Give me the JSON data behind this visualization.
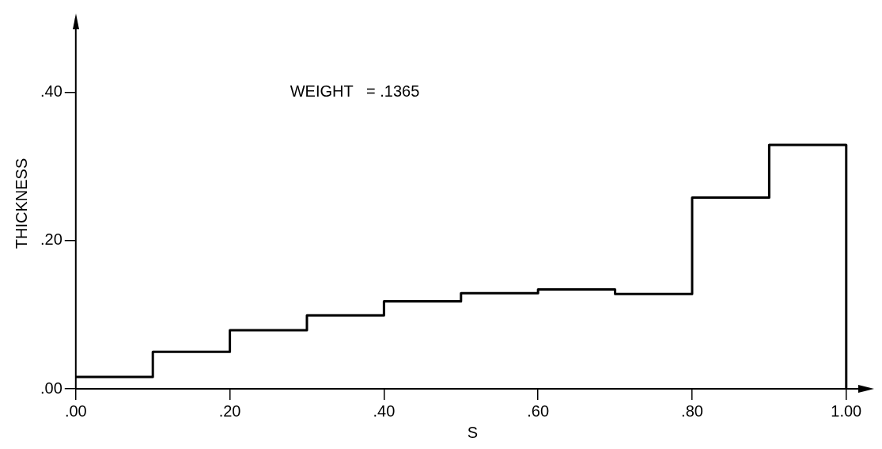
{
  "chart_data": {
    "type": "histogram",
    "xlabel": "S",
    "ylabel": "THICKNESS",
    "annotations": [
      "WEIGHT   = .1365"
    ],
    "bins": [
      0,
      0.1,
      0.2,
      0.3,
      0.4,
      0.5,
      0.6,
      0.7,
      0.8,
      0.9,
      1.0
    ],
    "values": [
      0.016,
      0.05,
      0.079,
      0.099,
      0.118,
      0.129,
      0.134,
      0.128,
      0.258,
      0.329
    ],
    "color": "#000000",
    "xlim": [
      0,
      1.03
    ],
    "xticks": [
      {
        "value": 0,
        "label": ".00"
      },
      {
        "value": 0.2,
        "label": ".20"
      },
      {
        "value": 0.4,
        "label": ".40"
      },
      {
        "value": 0.6,
        "label": ".60"
      },
      {
        "value": 0.8,
        "label": ".80"
      },
      {
        "value": 1.0,
        "label": "1.00"
      }
    ],
    "ylim": [
      0,
      0.5
    ],
    "yticks": [
      {
        "value": 0,
        "label": ".00"
      },
      {
        "value": 0.2,
        "label": ".20"
      },
      {
        "value": 0.4,
        "label": ".40"
      }
    ]
  }
}
